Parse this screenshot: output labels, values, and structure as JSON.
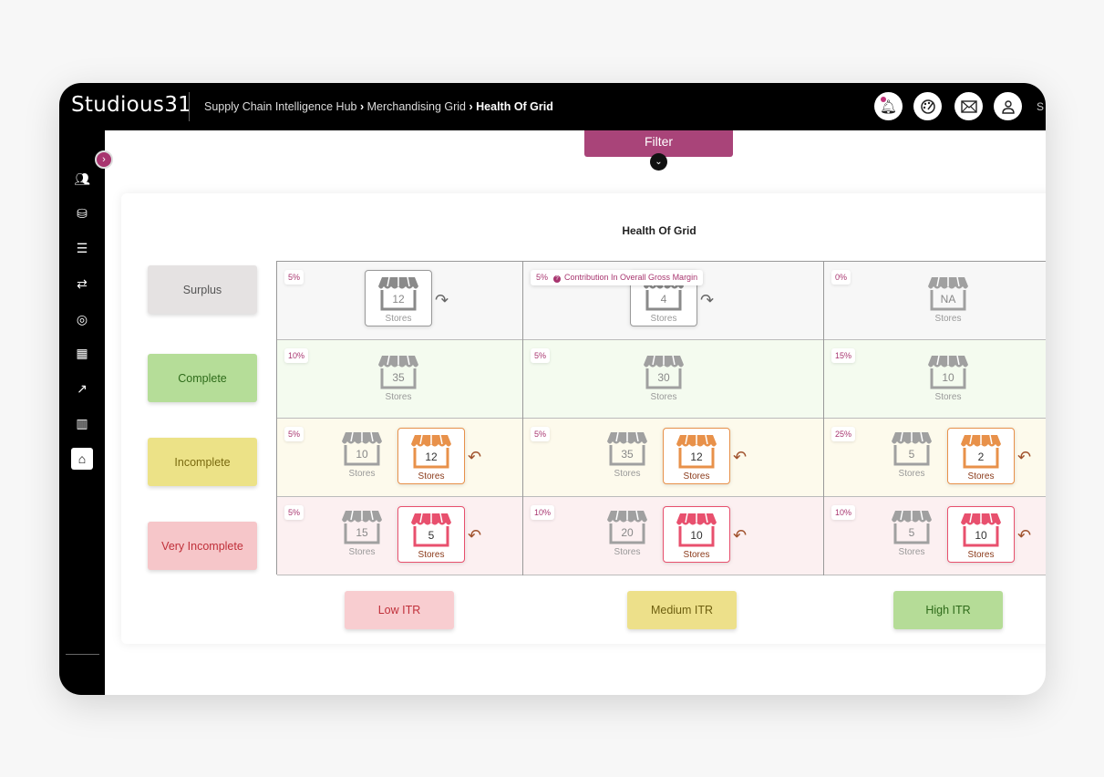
{
  "header": {
    "logo": "Studious31",
    "breadcrumb": [
      "Supply Chain Intelligence Hub",
      "Merchandising Grid"
    ],
    "breadcrumb_current": "Health Of Grid",
    "user_initial": "S",
    "icons": [
      "bell-icon",
      "palette-icon",
      "mail-icon",
      "user-icon"
    ]
  },
  "sidebar": {
    "icons": [
      "users-icon",
      "database-icon",
      "list-icon",
      "transfer-icon",
      "box-icon",
      "grid-icon",
      "chart-line-icon",
      "bar-chart-icon",
      "store-icon"
    ],
    "active": 8,
    "logout": "logout-icon"
  },
  "filter": {
    "label": "Filter"
  },
  "grid": {
    "title": "Health Of Grid",
    "tooltip": "Contribution In Overall Gross Margin",
    "store_label": "Stores",
    "columns": [
      {
        "label": "Low ITR",
        "bg": "#f8cdd0",
        "fg": "#c0303a"
      },
      {
        "label": "Medium ITR",
        "bg": "#ede08a",
        "fg": "#6e5f10"
      },
      {
        "label": "High ITR",
        "bg": "#b5dc97",
        "fg": "#2e6b1a"
      }
    ],
    "rows": [
      {
        "label": "Surplus",
        "bg": "#e5e2e2",
        "fg": "#555555",
        "cellbg": "#f7f7f7",
        "color": "#8a8a8a",
        "cells": [
          {
            "pct": "5%",
            "stores": "12",
            "boxed": true
          },
          {
            "pct": "5%",
            "stores": "4",
            "boxed": true
          },
          {
            "pct": "0%",
            "stores": "NA",
            "boxed": false
          }
        ]
      },
      {
        "label": "Complete",
        "bg": "#b5dd98",
        "fg": "#2e6b1a",
        "cellbg": "#f4fbef",
        "cells": [
          {
            "pct": "10%",
            "stores": "35"
          },
          {
            "pct": "5%",
            "stores": "30"
          },
          {
            "pct": "15%",
            "stores": "10"
          }
        ]
      },
      {
        "label": "Incomplete",
        "bg": "#ece287",
        "fg": "#7a6a10",
        "cellbg": "#fdfaec",
        "color": "#e8914a",
        "cells": [
          {
            "pct": "5%",
            "stores": "10",
            "target": "12"
          },
          {
            "pct": "5%",
            "stores": "35",
            "target": "12"
          },
          {
            "pct": "25%",
            "stores": "5",
            "target": "2"
          }
        ]
      },
      {
        "label": "Very Incomplete",
        "bg": "#f6c6c9",
        "fg": "#c0303a",
        "cellbg": "#fcf0f1",
        "color": "#e8506e",
        "cells": [
          {
            "pct": "5%",
            "stores": "15",
            "target": "5"
          },
          {
            "pct": "10%",
            "stores": "20",
            "target": "10"
          },
          {
            "pct": "10%",
            "stores": "5",
            "target": "10"
          }
        ]
      }
    ]
  }
}
